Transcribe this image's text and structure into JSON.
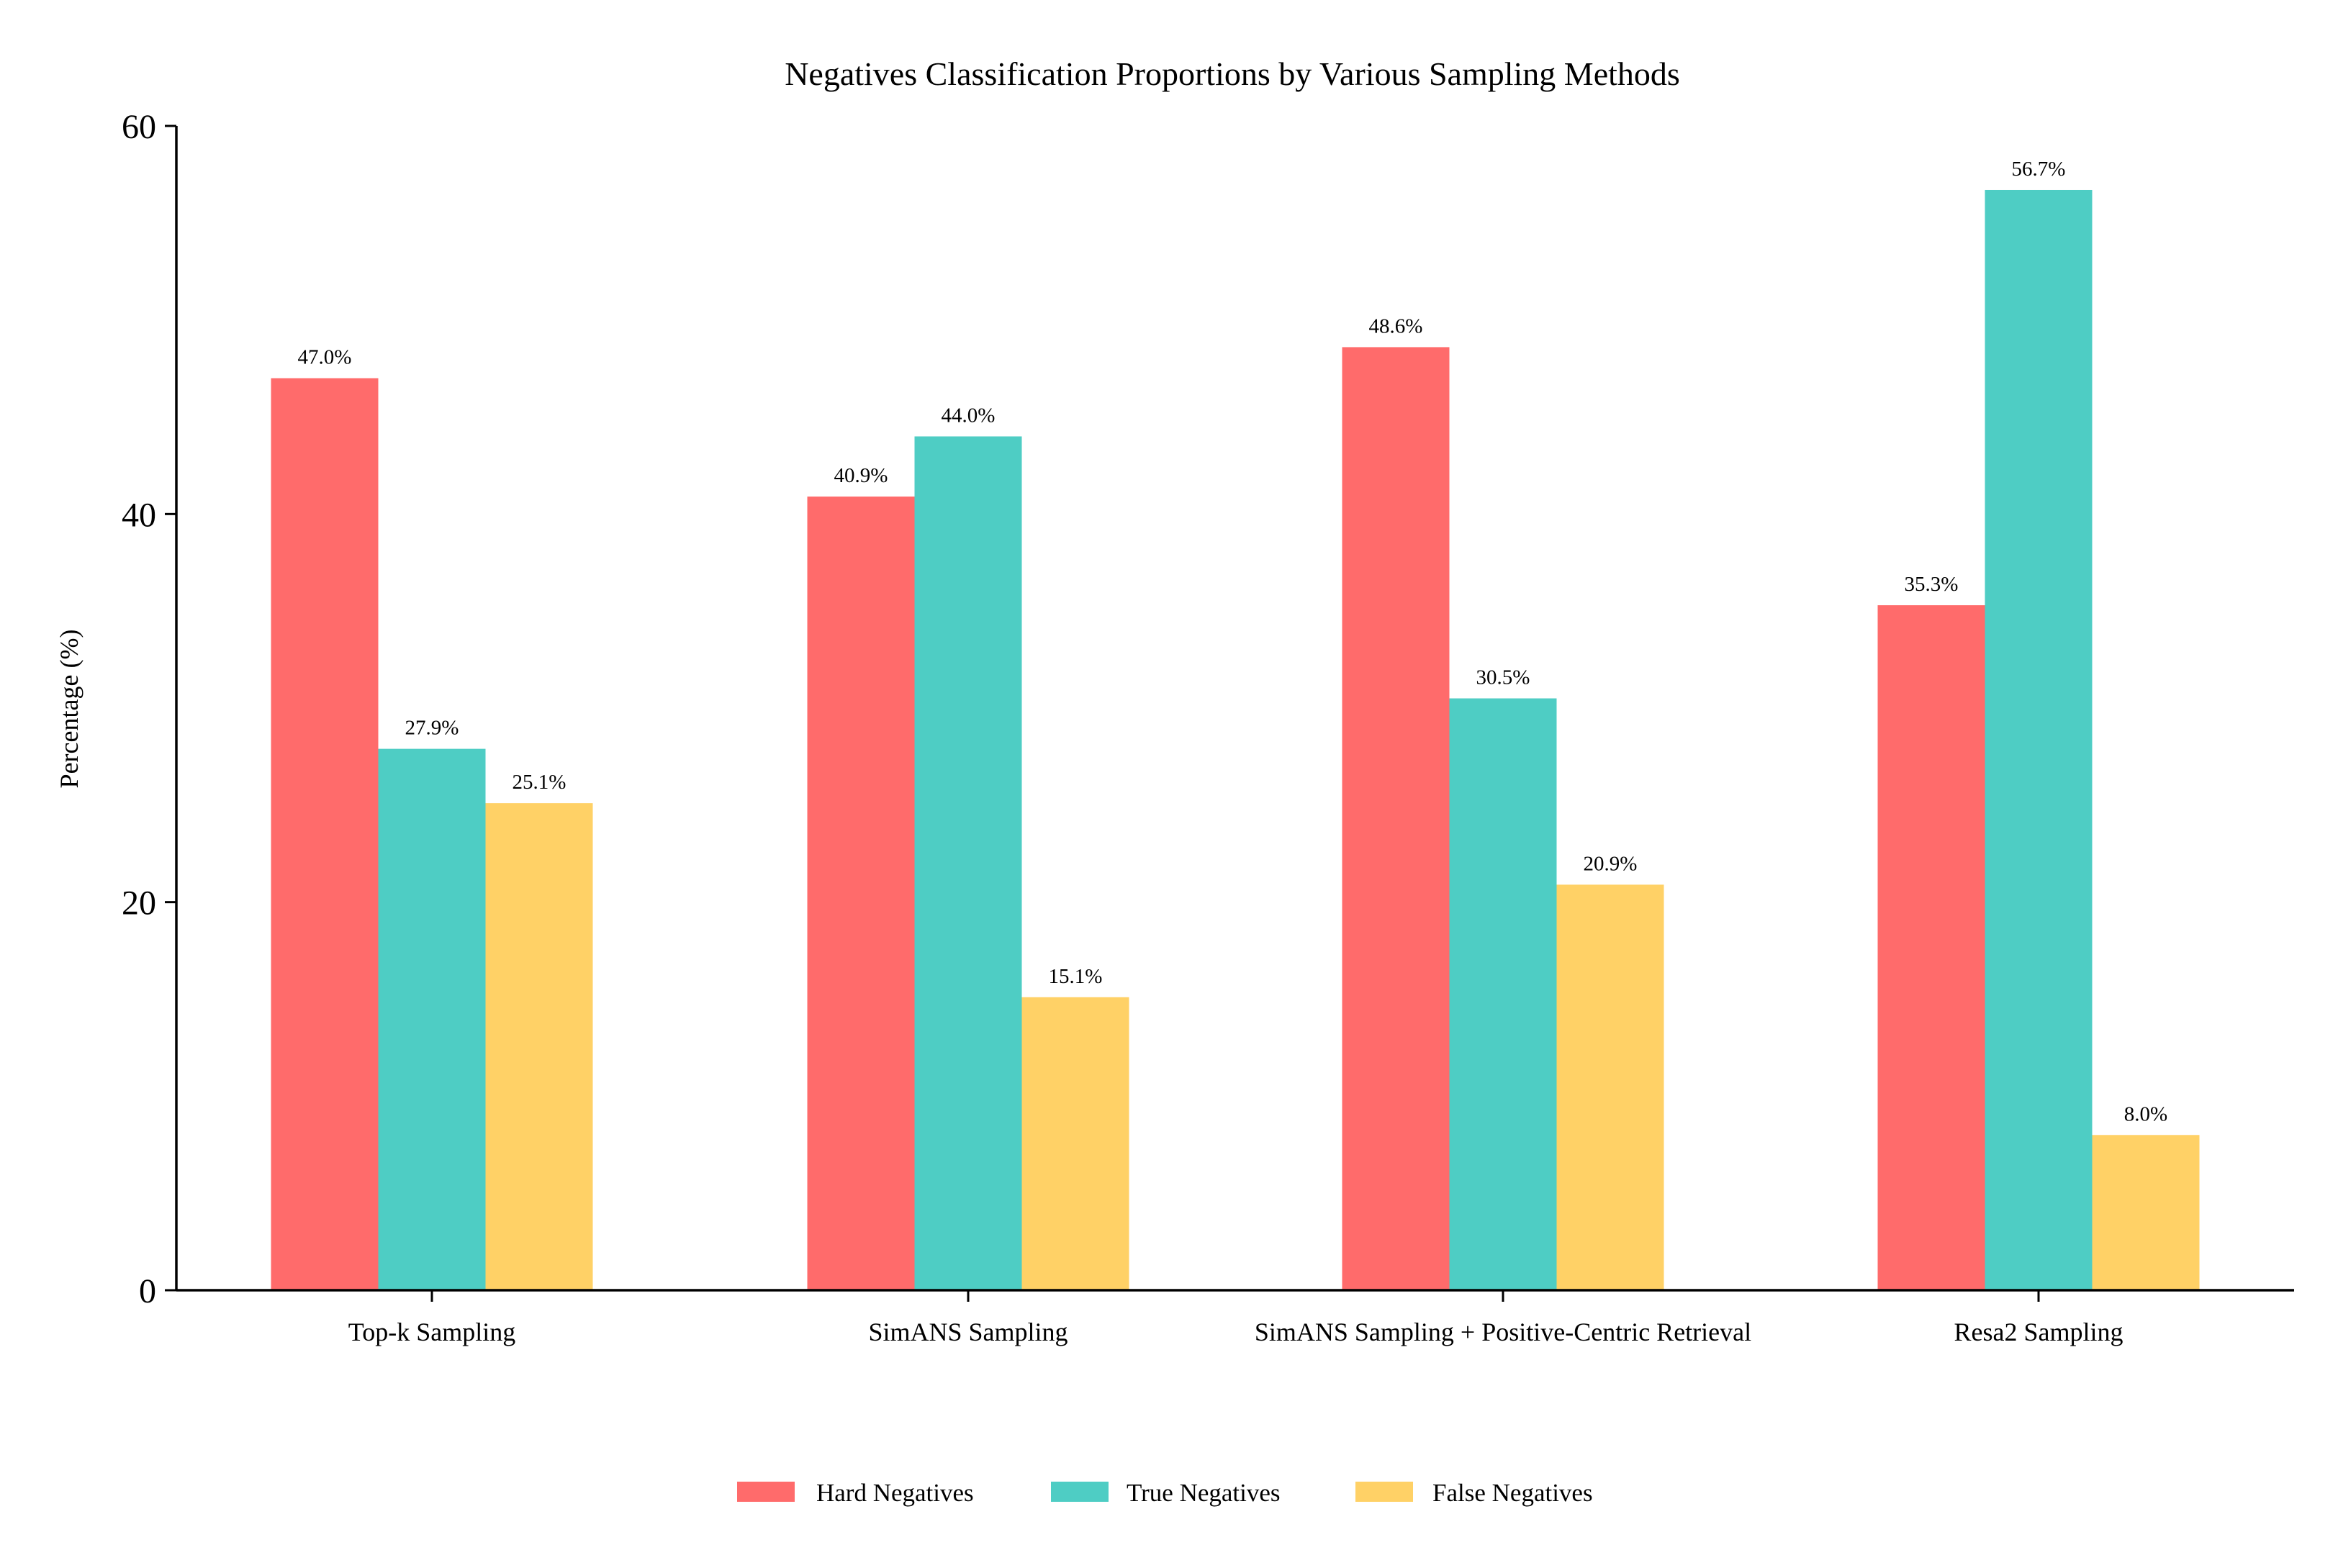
{
  "chart_data": {
    "type": "bar",
    "title": "Negatives Classification Proportions by Various Sampling Methods",
    "xlabel": "",
    "ylabel": "Percentage (%)",
    "ylim": [
      0,
      60
    ],
    "yticks": [
      0,
      20,
      40,
      60
    ],
    "categories": [
      "Top-k Sampling",
      "SimANS Sampling",
      "SimANS Sampling + Positive-Centric Retrieval",
      "Resa2 Sampling"
    ],
    "series": [
      {
        "name": "Hard Negatives",
        "color": "#FF6B6B",
        "values": [
          47.0,
          40.9,
          48.6,
          35.3
        ],
        "labels": [
          "47.0%",
          "40.9%",
          "48.6%",
          "35.3%"
        ]
      },
      {
        "name": "True Negatives",
        "color": "#4ECDC4",
        "values": [
          27.9,
          44.0,
          30.5,
          56.7
        ],
        "labels": [
          "27.9%",
          "44.0%",
          "30.5%",
          "56.7%"
        ]
      },
      {
        "name": "False Negatives",
        "color": "#FFD166",
        "values": [
          25.1,
          15.1,
          20.9,
          8.0
        ],
        "labels": [
          "25.1%",
          "15.1%",
          "20.9%",
          "8.0%"
        ]
      }
    ],
    "grid": false,
    "legend_position": "bottom-center"
  }
}
